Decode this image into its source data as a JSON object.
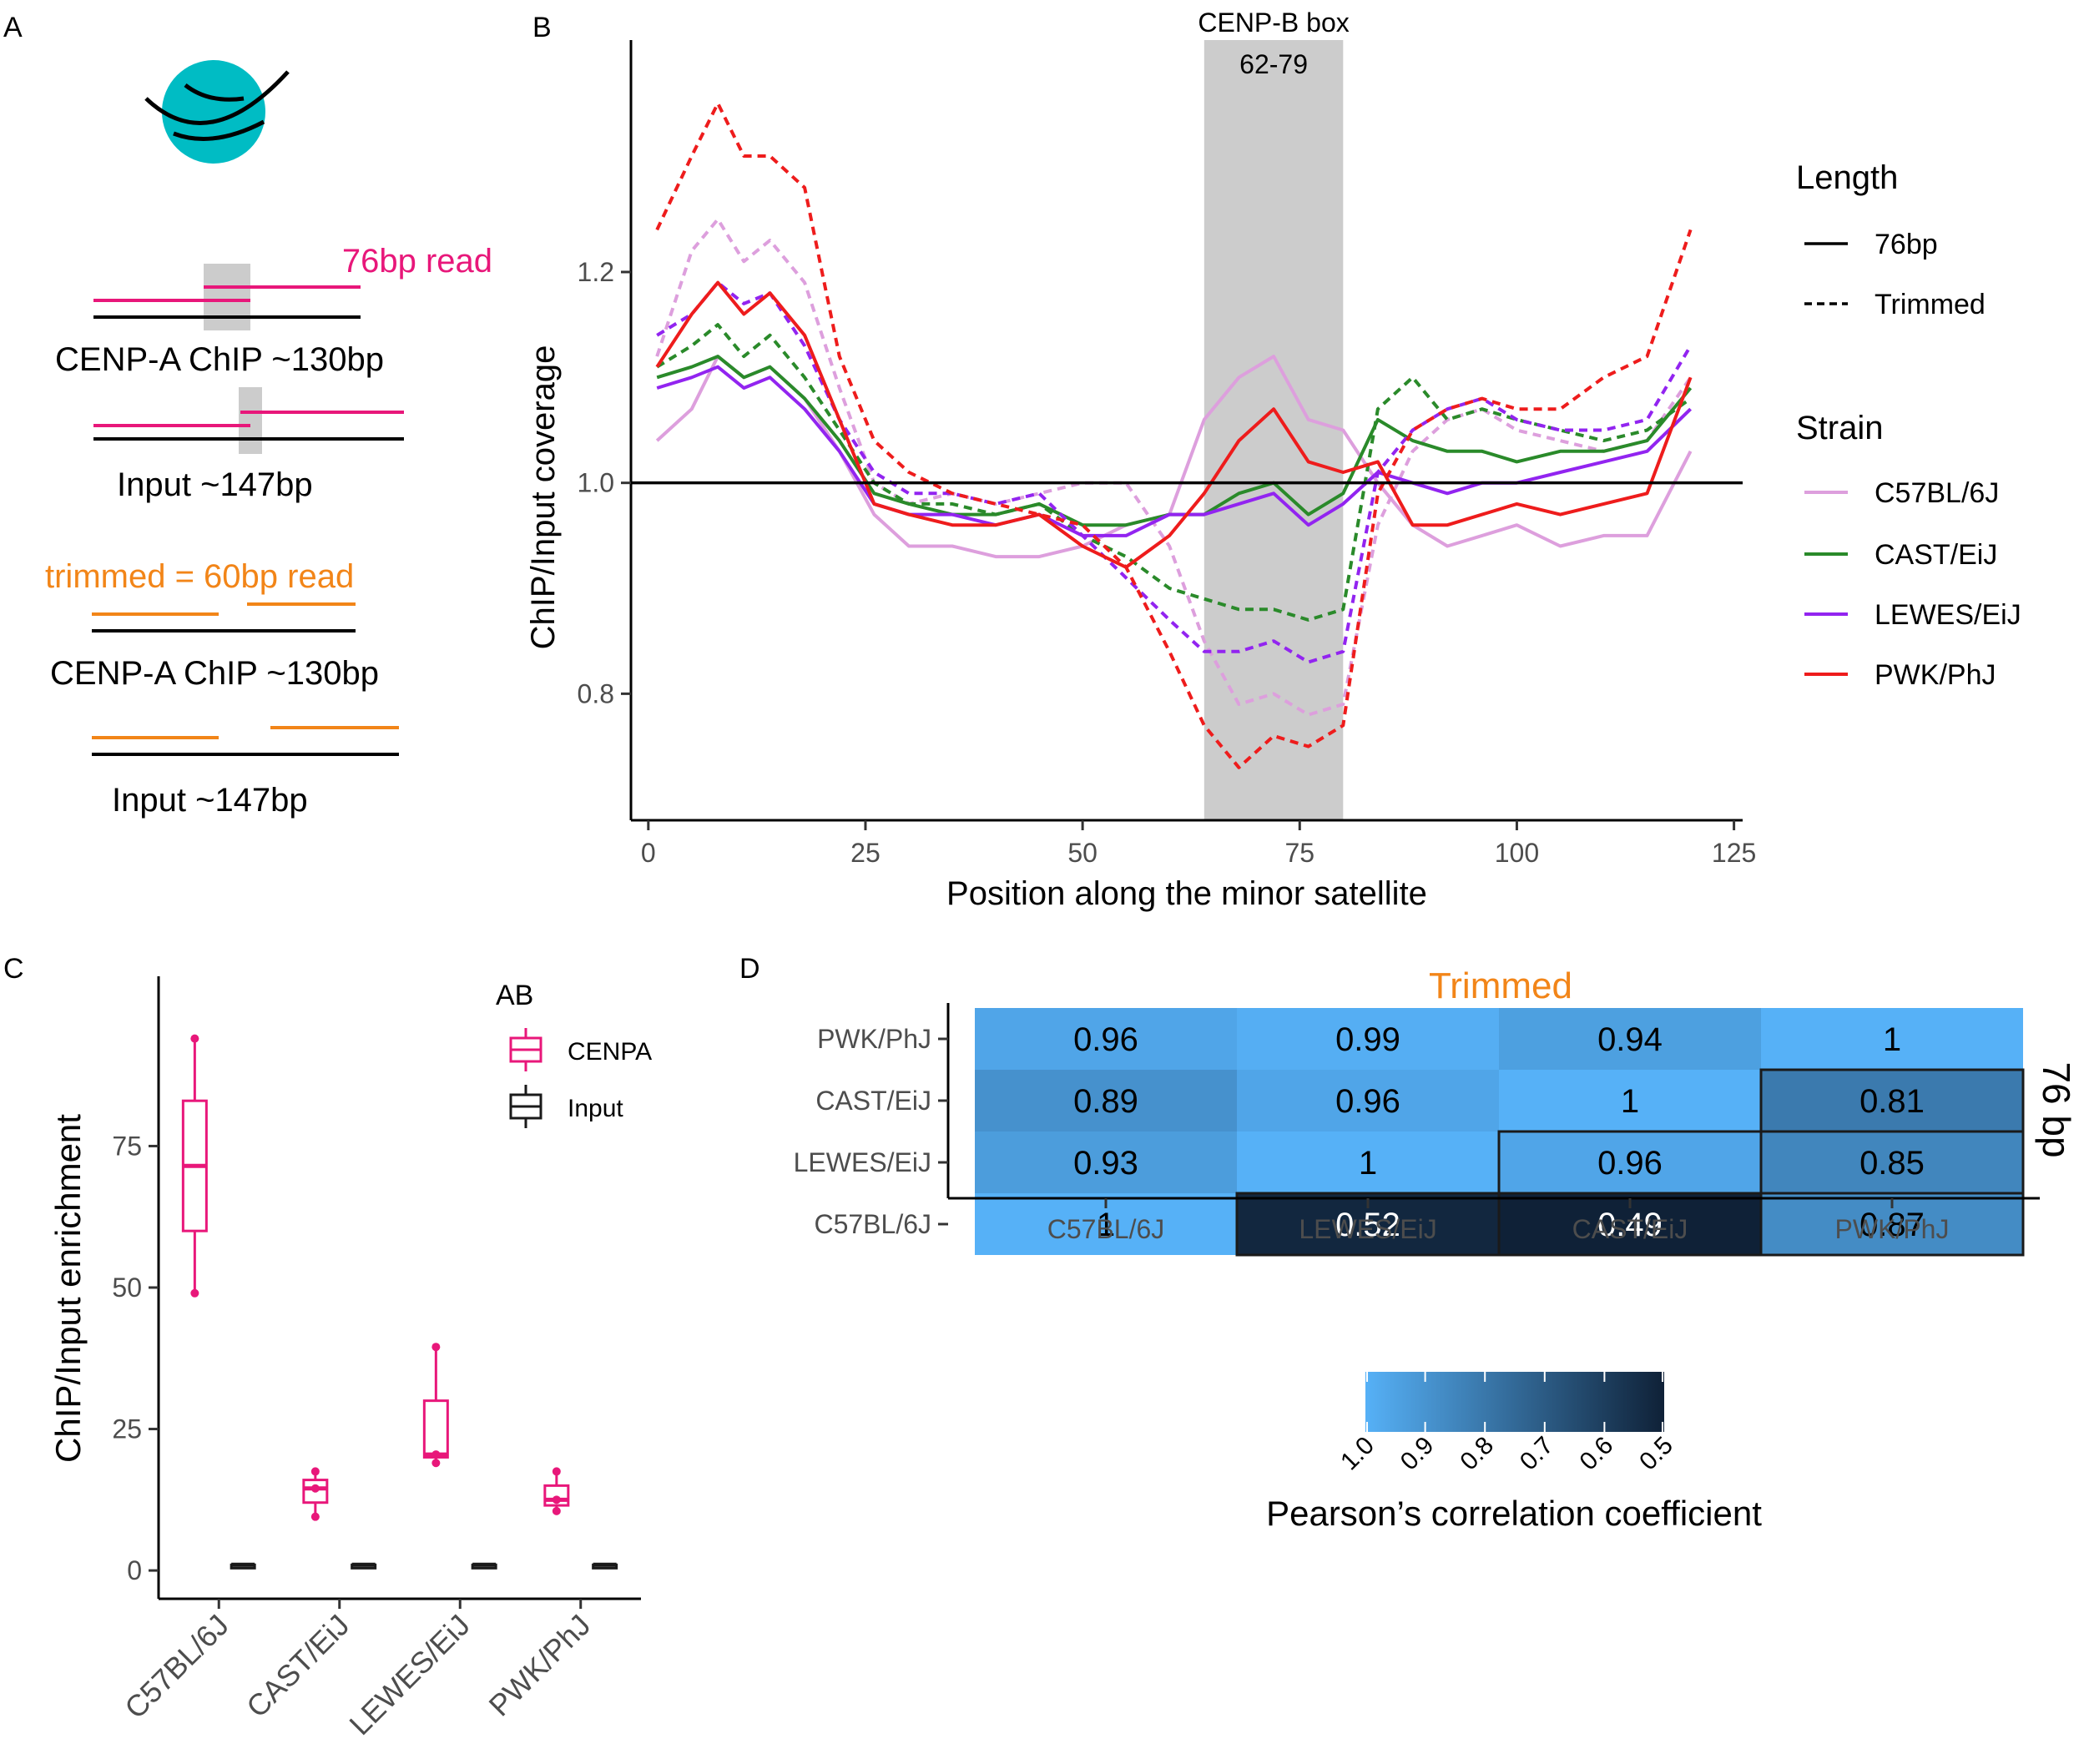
{
  "colors": {
    "cenpa_pink": "#e8177a",
    "trimmed_orange": "#f28518",
    "C57BL/6J": "#dd9fdd",
    "CAST/EiJ": "#2a8a2a",
    "LEWES/EiJ": "#9224f0",
    "PWK/PhJ": "#ee1c1c",
    "heat_low": "#0f2137",
    "heat_high": "#56b1f7",
    "cenpb_box_fill": "#cccccc"
  },
  "panel_labels": {
    "a": "A",
    "b": "B",
    "c": "C",
    "d": "D"
  },
  "panel_a": {
    "read_76": "76bp read",
    "chip_130_top": "CENP-A ChIP ~130bp",
    "input_147_top": "Input ~147bp",
    "trimmed_read": "trimmed = 60bp read",
    "chip_130_bottom": "CENP-A ChIP ~130bp",
    "input_147_bottom": "Input ~147bp",
    "nucleosome_icon": "nucleosome-icon"
  },
  "chart_data": [
    {
      "id": "B",
      "type": "line",
      "xlabel": "Position along the minor satellite",
      "ylabel": "ChIP/Input coverage",
      "xlim": [
        -2,
        126
      ],
      "ylim": [
        0.68,
        1.42
      ],
      "xticks": [
        0,
        25,
        50,
        75,
        100,
        125
      ],
      "yticks": [
        0.8,
        1.0,
        1.2
      ],
      "ytick_labels": [
        "0.8",
        "1.0",
        "1.2"
      ],
      "hline": 1.0,
      "annotation": {
        "label_line1": "CENP-B box",
        "label_line2": "62-79",
        "x_start": 64,
        "x_end": 80
      },
      "legend": {
        "length_title": "Length",
        "length_items": [
          {
            "label": "76bp",
            "style": "solid"
          },
          {
            "label": "Trimmed",
            "style": "dashed"
          }
        ],
        "strain_title": "Strain",
        "strain_items": [
          "C57BL/6J",
          "CAST/EiJ",
          "LEWES/EiJ",
          "PWK/PhJ"
        ]
      },
      "x": [
        1,
        5,
        8,
        11,
        14,
        18,
        22,
        26,
        30,
        35,
        40,
        45,
        50,
        55,
        60,
        64,
        68,
        72,
        76,
        80,
        84,
        88,
        92,
        96,
        100,
        105,
        110,
        115,
        120
      ],
      "series": [
        {
          "strain": "C57BL/6J",
          "length": "76bp",
          "values": [
            1.04,
            1.07,
            1.12,
            1.1,
            1.11,
            1.08,
            1.03,
            0.97,
            0.94,
            0.94,
            0.93,
            0.93,
            0.94,
            0.96,
            0.97,
            1.06,
            1.1,
            1.12,
            1.06,
            1.05,
            1.0,
            0.96,
            0.94,
            0.95,
            0.96,
            0.94,
            0.95,
            0.95,
            1.03
          ]
        },
        {
          "strain": "C57BL/6J",
          "length": "Trimmed",
          "values": [
            1.12,
            1.22,
            1.25,
            1.21,
            1.23,
            1.19,
            1.09,
            1.0,
            0.98,
            0.99,
            0.98,
            0.99,
            1.0,
            1.0,
            0.94,
            0.85,
            0.79,
            0.8,
            0.78,
            0.79,
            0.96,
            1.03,
            1.06,
            1.07,
            1.05,
            1.04,
            1.03,
            1.04,
            1.1
          ]
        },
        {
          "strain": "CAST/EiJ",
          "length": "76bp",
          "values": [
            1.1,
            1.11,
            1.12,
            1.1,
            1.11,
            1.08,
            1.04,
            0.99,
            0.98,
            0.97,
            0.97,
            0.98,
            0.96,
            0.96,
            0.97,
            0.97,
            0.99,
            1.0,
            0.97,
            0.99,
            1.06,
            1.04,
            1.03,
            1.03,
            1.02,
            1.03,
            1.03,
            1.04,
            1.09
          ]
        },
        {
          "strain": "CAST/EiJ",
          "length": "Trimmed",
          "values": [
            1.11,
            1.13,
            1.15,
            1.12,
            1.14,
            1.1,
            1.05,
            1.0,
            0.98,
            0.98,
            0.97,
            0.98,
            0.95,
            0.93,
            0.9,
            0.89,
            0.88,
            0.88,
            0.87,
            0.88,
            1.07,
            1.1,
            1.06,
            1.07,
            1.06,
            1.05,
            1.04,
            1.05,
            1.08
          ]
        },
        {
          "strain": "LEWES/EiJ",
          "length": "76bp",
          "values": [
            1.09,
            1.1,
            1.11,
            1.09,
            1.1,
            1.07,
            1.03,
            0.98,
            0.97,
            0.97,
            0.96,
            0.97,
            0.95,
            0.95,
            0.97,
            0.97,
            0.98,
            0.99,
            0.96,
            0.98,
            1.01,
            1.0,
            0.99,
            1.0,
            1.0,
            1.01,
            1.02,
            1.03,
            1.07
          ]
        },
        {
          "strain": "LEWES/EiJ",
          "length": "Trimmed",
          "values": [
            1.14,
            1.16,
            1.19,
            1.17,
            1.18,
            1.13,
            1.06,
            1.01,
            0.99,
            0.99,
            0.98,
            0.99,
            0.95,
            0.91,
            0.87,
            0.84,
            0.84,
            0.85,
            0.83,
            0.84,
            1.01,
            1.05,
            1.07,
            1.08,
            1.06,
            1.05,
            1.05,
            1.06,
            1.13
          ]
        },
        {
          "strain": "PWK/PhJ",
          "length": "76bp",
          "values": [
            1.11,
            1.16,
            1.19,
            1.16,
            1.18,
            1.14,
            1.06,
            0.98,
            0.97,
            0.96,
            0.96,
            0.97,
            0.94,
            0.92,
            0.95,
            0.99,
            1.04,
            1.07,
            1.02,
            1.01,
            1.02,
            0.96,
            0.96,
            0.97,
            0.98,
            0.97,
            0.98,
            0.99,
            1.1
          ]
        },
        {
          "strain": "PWK/PhJ",
          "length": "Trimmed",
          "values": [
            1.24,
            1.31,
            1.36,
            1.31,
            1.31,
            1.28,
            1.12,
            1.04,
            1.01,
            0.99,
            0.98,
            0.97,
            0.96,
            0.92,
            0.84,
            0.77,
            0.73,
            0.76,
            0.75,
            0.77,
            0.99,
            1.05,
            1.07,
            1.08,
            1.07,
            1.07,
            1.1,
            1.12,
            1.24
          ]
        }
      ]
    },
    {
      "id": "C",
      "type": "boxplot",
      "ylabel": "ChIP/Input enrichment",
      "xlabel": "",
      "ylim": [
        -5,
        105
      ],
      "yticks": [
        0,
        25,
        50,
        75
      ],
      "categories": [
        "C57BL/6J",
        "CAST/EiJ",
        "LEWES/EiJ",
        "PWK/PhJ"
      ],
      "legend": {
        "title": "AB",
        "items": [
          "CENPA",
          "Input"
        ]
      },
      "boxes": [
        {
          "category": "C57BL/6J",
          "group": "CENPA",
          "min": 49,
          "q1": 60,
          "median": 71.5,
          "q3": 83,
          "max": 94,
          "points": [
            49,
            94
          ]
        },
        {
          "category": "C57BL/6J",
          "group": "Input",
          "min": 1,
          "q1": 1,
          "median": 1,
          "q3": 1,
          "max": 1,
          "points": []
        },
        {
          "category": "CAST/EiJ",
          "group": "CENPA",
          "min": 9.5,
          "q1": 12,
          "median": 14.5,
          "q3": 16,
          "max": 17.5,
          "points": [
            9.5,
            14.5,
            17.5
          ]
        },
        {
          "category": "CAST/EiJ",
          "group": "Input",
          "min": 1,
          "q1": 1,
          "median": 1,
          "q3": 1,
          "max": 1,
          "points": []
        },
        {
          "category": "LEWES/EiJ",
          "group": "CENPA",
          "min": 19,
          "q1": 20,
          "median": 20.5,
          "q3": 30,
          "max": 39.5,
          "points": [
            19,
            20.5,
            39.5
          ]
        },
        {
          "category": "LEWES/EiJ",
          "group": "Input",
          "min": 1,
          "q1": 1,
          "median": 1,
          "q3": 1,
          "max": 1,
          "points": []
        },
        {
          "category": "PWK/PhJ",
          "group": "CENPA",
          "min": 10.5,
          "q1": 11.5,
          "median": 12.5,
          "q3": 15,
          "max": 17.5,
          "points": [
            10.5,
            12.5,
            17.5
          ]
        },
        {
          "category": "PWK/PhJ",
          "group": "Input",
          "min": 1,
          "q1": 1,
          "median": 1,
          "q3": 1,
          "max": 1,
          "points": []
        }
      ]
    },
    {
      "id": "D",
      "type": "heatmap",
      "title": "Trimmed",
      "right_label": "76 bp",
      "x_categories": [
        "C57BL/6J",
        "LEWES/EiJ",
        "CAST/EiJ",
        "PWK/PhJ"
      ],
      "y_categories_top_to_bottom": [
        "PWK/PhJ",
        "CAST/EiJ",
        "LEWES/EiJ",
        "C57BL/6J"
      ],
      "values_top_to_bottom": [
        [
          "0.96",
          "0.99",
          "0.94",
          "1"
        ],
        [
          "0.89",
          "0.96",
          "1",
          "0.81"
        ],
        [
          "0.93",
          "1",
          "0.96",
          "0.85"
        ],
        [
          "1",
          "0.52",
          "0.49",
          "0.87"
        ]
      ],
      "outlined_cells": [
        [
          1,
          3
        ],
        [
          2,
          2
        ],
        [
          2,
          3
        ],
        [
          3,
          1
        ],
        [
          3,
          2
        ],
        [
          3,
          3
        ]
      ],
      "colorbar": {
        "title": "Pearson’s correlation coefficient",
        "range": [
          0.5,
          1.0
        ],
        "ticks": [
          "1.0",
          "0.9",
          "0.8",
          "0.7",
          "0.6",
          "0.5"
        ]
      }
    }
  ]
}
